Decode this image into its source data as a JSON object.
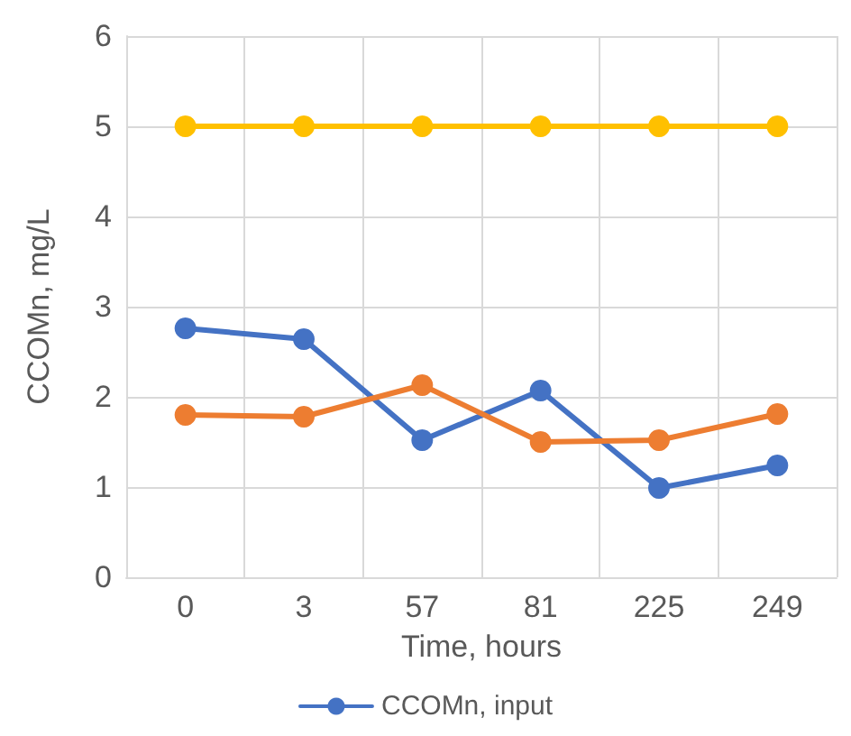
{
  "chart_data": {
    "type": "line",
    "xlabel": "Time, hours",
    "ylabel": "CCOMn, mg/L",
    "categories": [
      "0",
      "3",
      "57",
      "81",
      "225",
      "249"
    ],
    "series": [
      {
        "name": "CCOMn, input",
        "color": "#4472c4",
        "values": [
          2.76,
          2.64,
          1.52,
          2.07,
          0.99,
          1.24
        ]
      },
      {
        "color": "#ed7d31",
        "values": [
          1.8,
          1.78,
          2.13,
          1.5,
          1.52,
          1.81
        ]
      },
      {
        "color": "#ffc000",
        "values": [
          5,
          5,
          5,
          5,
          5,
          5
        ]
      }
    ],
    "ylim": [
      0,
      6
    ],
    "yticks": [
      0,
      1,
      2,
      3,
      4,
      5,
      6
    ],
    "grid": true,
    "legend": "bottom",
    "marker": "circle",
    "line_style": "solid"
  }
}
